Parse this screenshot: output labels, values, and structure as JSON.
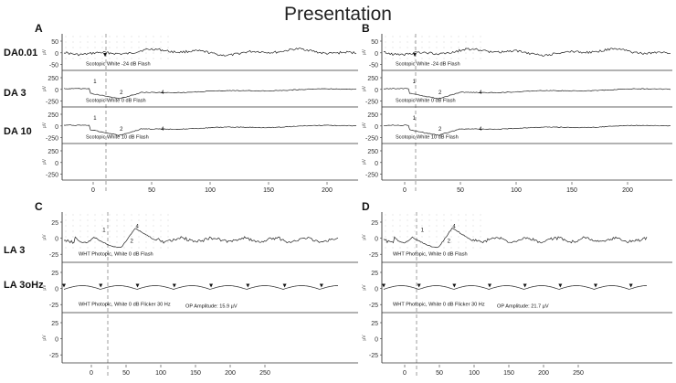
{
  "title": "Presentation",
  "rows": [
    {
      "label": "DA0.01"
    },
    {
      "label": "DA 3"
    },
    {
      "label": "DA 10"
    },
    {
      "label": "LA 3"
    },
    {
      "label": "LA 3oHz"
    }
  ],
  "panels": [
    {
      "letter": "A",
      "x_ticks": [
        "0",
        "50",
        "100",
        "150",
        "200"
      ],
      "traces": [
        {
          "label": "Scotopic White -24 dB Flash",
          "y_ticks": [
            "50",
            "0",
            "-50"
          ],
          "wave": "dim"
        },
        {
          "label": "Scotopic White 0 dB Flash",
          "y_ticks": [
            "250",
            "0",
            "-250"
          ],
          "wave": "flash",
          "markers": [
            "1",
            "2",
            "4"
          ]
        },
        {
          "label": "Scotopic White 10 dB Flash",
          "y_ticks": [
            "250",
            "0",
            "-250"
          ],
          "wave": "flash",
          "markers": [
            "1",
            "2",
            "4"
          ]
        },
        {
          "label": "",
          "y_ticks": [
            "250",
            "0",
            "-250"
          ],
          "wave": "none"
        }
      ]
    },
    {
      "letter": "B",
      "x_ticks": [
        "0",
        "50",
        "100",
        "150",
        "200"
      ],
      "traces": [
        {
          "label": "Scotopic White -24 dB Flash",
          "y_ticks": [
            "50",
            "0",
            "-50"
          ],
          "wave": "dim"
        },
        {
          "label": "Scotopic White 0 dB Flash",
          "y_ticks": [
            "250",
            "0",
            "-250"
          ],
          "wave": "flash",
          "markers": [
            "1",
            "2",
            "4"
          ]
        },
        {
          "label": "Scotopic White 10 dB Flash",
          "y_ticks": [
            "250",
            "0",
            "-250"
          ],
          "wave": "flash",
          "markers": [
            "1",
            "2",
            "4"
          ]
        },
        {
          "label": "",
          "y_ticks": [
            "250",
            "0",
            "-250"
          ],
          "wave": "none"
        }
      ]
    },
    {
      "letter": "C",
      "x_ticks": [
        "0",
        "50",
        "100",
        "150",
        "200",
        "250"
      ],
      "traces": [
        {
          "label": "WHT Photopic, White 0 dB Flash",
          "y_ticks": [
            "25",
            "0",
            "-25"
          ],
          "wave": "photopic",
          "markers": [
            "1",
            "2",
            "4"
          ]
        },
        {
          "label": "WHT Photopic, White 0 dB Flicker 30 Hz",
          "extra": "OP Amplitude: 15.9 µV",
          "y_ticks": [
            "25",
            "0",
            "-25"
          ],
          "wave": "flicker"
        },
        {
          "label": "",
          "y_ticks": [
            "25",
            "0",
            "-25"
          ],
          "wave": "none"
        }
      ]
    },
    {
      "letter": "D",
      "x_ticks": [
        "0",
        "50",
        "100",
        "150",
        "200",
        "250"
      ],
      "traces": [
        {
          "label": "WHT Photopic, White 0 dB Flash",
          "y_ticks": [
            "25",
            "0",
            "-25"
          ],
          "wave": "photopic",
          "markers": [
            "1",
            "2",
            "4"
          ]
        },
        {
          "label": "WHT Photopic, White 0 dB Flicker 30 Hz",
          "extra": "OP Amplitude: 21.7 µV",
          "y_ticks": [
            "25",
            "0",
            "-25"
          ],
          "wave": "flicker"
        },
        {
          "label": "",
          "y_ticks": [
            "25",
            "0",
            "-25"
          ],
          "wave": "none"
        }
      ]
    }
  ]
}
